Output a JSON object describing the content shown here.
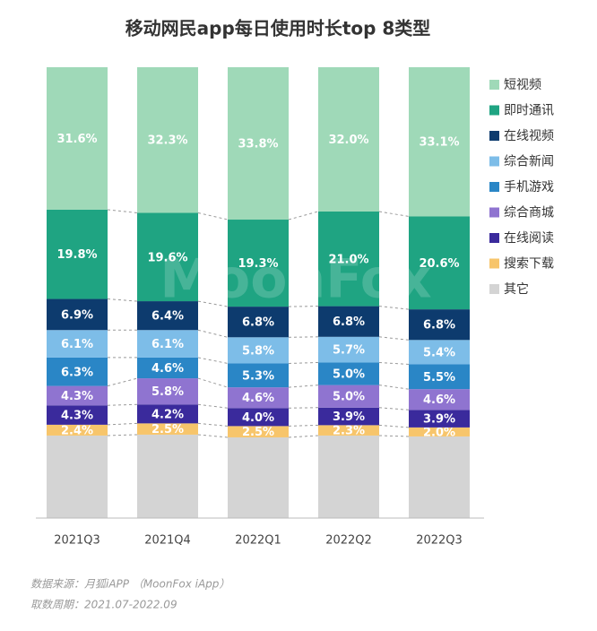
{
  "chart_data": {
    "type": "stacked_bar_percent",
    "title": "移动网民app每日使用时长top 8类型",
    "watermark": "MoonFox",
    "categories": [
      "2021Q3",
      "2021Q4",
      "2022Q1",
      "2022Q2",
      "2022Q3"
    ],
    "ylim": [
      0,
      100
    ],
    "legend": "right",
    "series": [
      {
        "name": "其它",
        "color": "#d4d4d4",
        "values": [
          18.3,
          18.5,
          17.9,
          18.3,
          18.1
        ]
      },
      {
        "name": "搜索下载",
        "color": "#f7c56b",
        "values": [
          2.4,
          2.5,
          2.5,
          2.3,
          2.0
        ],
        "value_labels": [
          "2.4%",
          "2.5%",
          "2.5%",
          "2.3%",
          "2.0%"
        ]
      },
      {
        "name": "在线阅读",
        "color": "#3a2a9c",
        "values": [
          4.3,
          4.2,
          4.0,
          3.9,
          3.9
        ],
        "value_labels": [
          "4.3%",
          "4.2%",
          "4.0%",
          "3.9%",
          "3.9%"
        ]
      },
      {
        "name": "综合商城",
        "color": "#8f74d0",
        "values": [
          4.3,
          5.8,
          4.6,
          5.0,
          4.6
        ],
        "value_labels": [
          "4.3%",
          "5.8%",
          "4.6%",
          "5.0%",
          "4.6%"
        ]
      },
      {
        "name": "手机游戏",
        "color": "#2a86c6",
        "values": [
          6.3,
          4.6,
          5.3,
          5.0,
          5.5
        ],
        "value_labels": [
          "6.3%",
          "4.6%",
          "5.3%",
          "5.0%",
          "5.5%"
        ]
      },
      {
        "name": "综合新闻",
        "color": "#7dbde8",
        "values": [
          6.1,
          6.1,
          5.8,
          5.7,
          5.4
        ],
        "value_labels": [
          "6.1%",
          "6.1%",
          "5.8%",
          "5.7%",
          "5.4%"
        ]
      },
      {
        "name": "在线视频",
        "color": "#0d3b6e",
        "values": [
          6.9,
          6.4,
          6.8,
          6.8,
          6.8
        ],
        "value_labels": [
          "6.9%",
          "6.4%",
          "6.8%",
          "6.8%",
          "6.8%"
        ]
      },
      {
        "name": "即时通讯",
        "color": "#1fa482",
        "values": [
          19.8,
          19.6,
          19.3,
          21.0,
          20.6
        ],
        "value_labels": [
          "19.8%",
          "19.6%",
          "19.3%",
          "21.0%",
          "20.6%"
        ]
      },
      {
        "name": "短视频",
        "color": "#9fd9b8",
        "values": [
          31.6,
          32.3,
          33.8,
          32.0,
          33.1
        ],
        "value_labels": [
          "31.6%",
          "32.3%",
          "33.8%",
          "32.0%",
          "33.1%"
        ]
      }
    ],
    "notes": [
      "数据来源：月狐iAPP （MoonFox iApp）",
      "取数周期：2021.07-2022.09"
    ]
  }
}
